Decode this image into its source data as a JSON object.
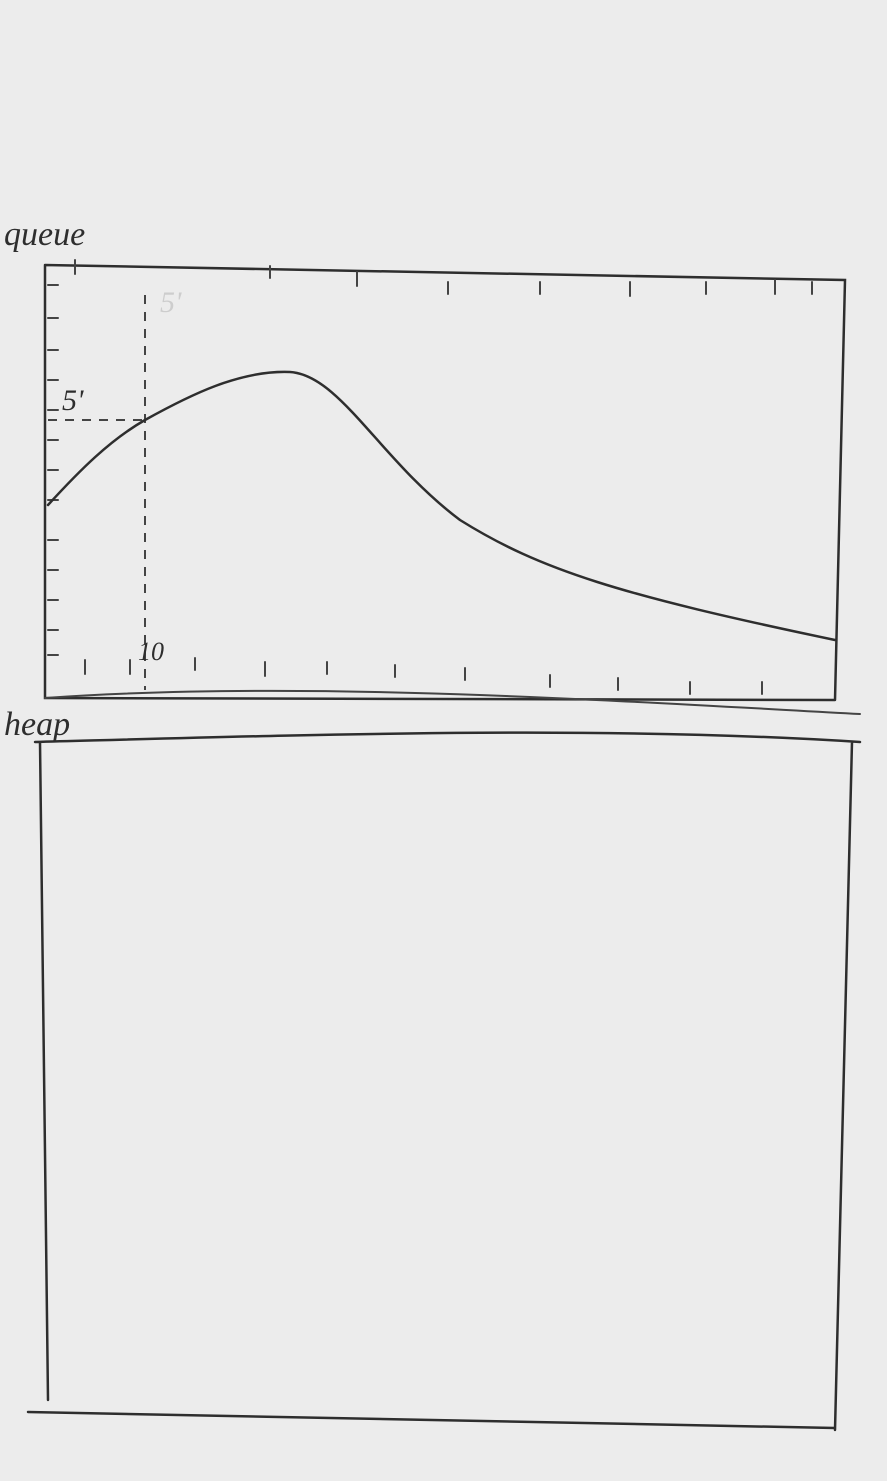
{
  "panels": [
    {
      "title": "queue",
      "annotations": [
        "5'",
        "5'",
        "10"
      ]
    },
    {
      "title": "heap"
    }
  ]
}
